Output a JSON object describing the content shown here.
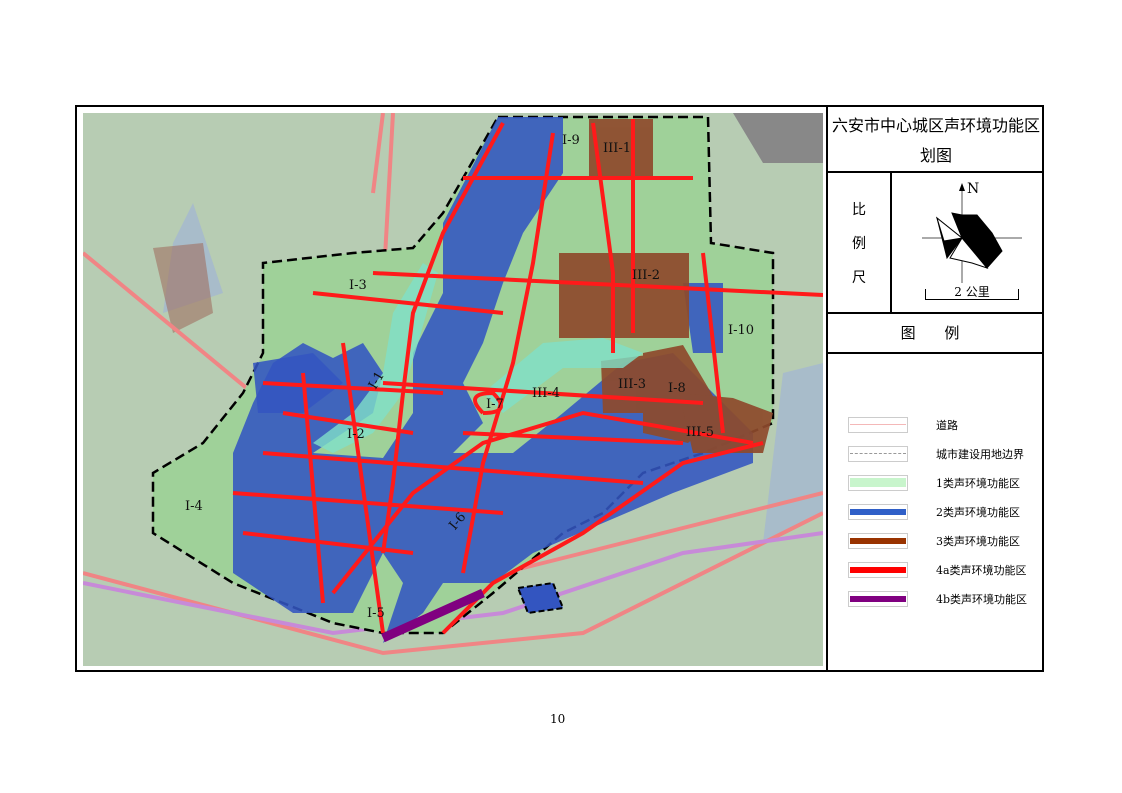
{
  "title_line1": "六安市中心城区声环境功能区",
  "title_line2": "划图",
  "scale": {
    "label_chars": [
      "比",
      "例",
      "尺"
    ],
    "north": "N",
    "bar_label": "2 公里"
  },
  "legend": {
    "heading": "图 例",
    "items": [
      {
        "label": "道路",
        "color": "#f4b8b8",
        "style": "road"
      },
      {
        "label": "城市建设用地边界",
        "color": "#999999",
        "style": "dashed"
      },
      {
        "label": "1类声环境功能区",
        "color": "#c8f5cc",
        "style": "fill"
      },
      {
        "label": "2类声环境功能区",
        "color": "#2f5fc8",
        "style": "fill"
      },
      {
        "label": "3类声环境功能区",
        "color": "#993300",
        "style": "fill"
      },
      {
        "label": "4a类声环境功能区",
        "color": "#ff0000",
        "style": "fill"
      },
      {
        "label": "4b类声环境功能区",
        "color": "#800080",
        "style": "fill"
      }
    ]
  },
  "zones": [
    "I-9",
    "III-1",
    "I-3",
    "III-2",
    "I-10",
    "I-1",
    "III-4",
    "III-3",
    "I-8",
    "I-7",
    "I-2",
    "III-5",
    "I-4",
    "I-6",
    "I-5"
  ],
  "page_number": "10"
}
